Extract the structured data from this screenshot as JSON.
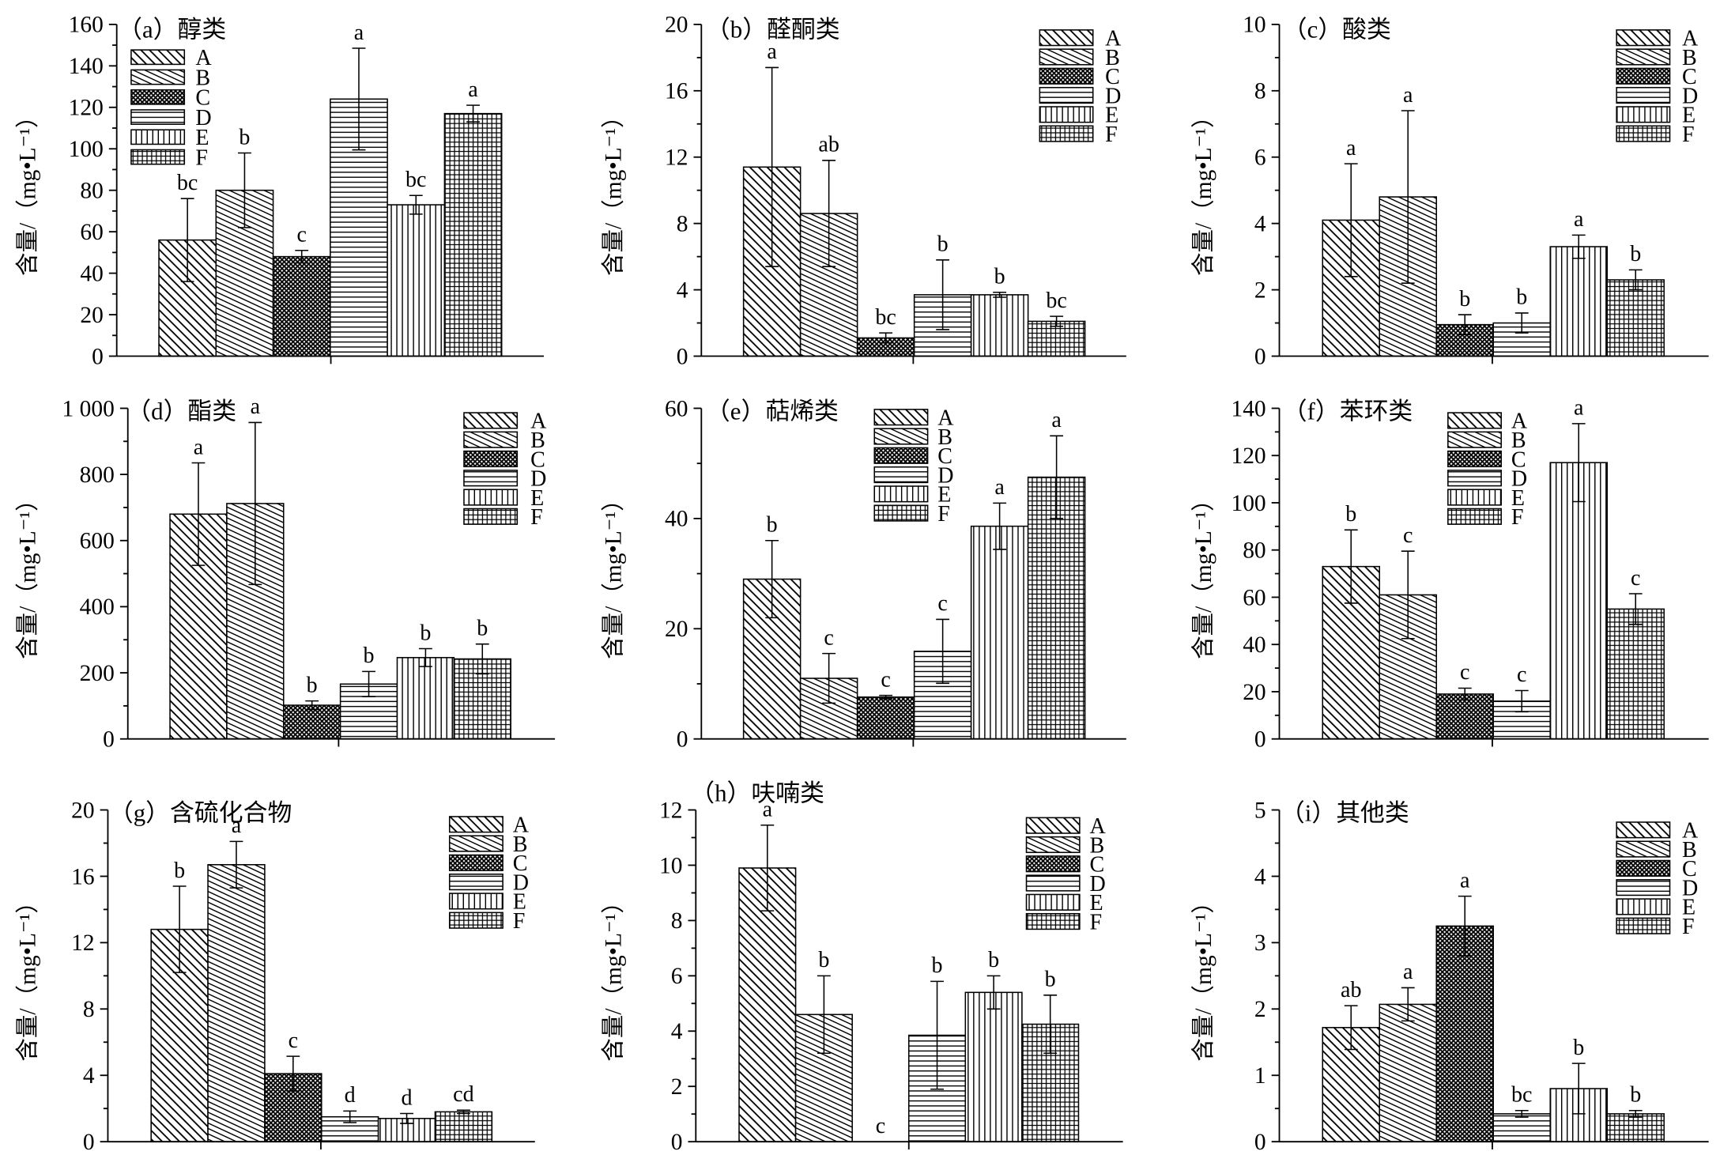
{
  "colors": {
    "ink": "#000000",
    "background": "#ffffff"
  },
  "bar_patterns": {
    "A": "diagonal-hatch",
    "B": "shallow-diagonal-hatch",
    "C": "dense-crosshatch",
    "D": "horizontal-lines",
    "E": "vertical-lines",
    "F": "grid"
  },
  "chart_data": [
    {
      "type": "bar",
      "title": "（a）醇类",
      "ylabel": "含量/（mg•L⁻¹）",
      "ylim": [
        0,
        160
      ],
      "yticks": [
        0,
        20,
        40,
        60,
        80,
        100,
        120,
        140,
        160
      ],
      "ytick_labels": [
        "0",
        "20",
        "40",
        "60",
        "80",
        "100",
        "120",
        "140",
        "160"
      ],
      "categories": [
        "A",
        "B",
        "C",
        "D",
        "E",
        "F"
      ],
      "values": [
        56,
        80,
        48,
        124,
        73,
        117
      ],
      "errors": [
        20,
        18,
        3,
        24.5,
        4.5,
        4
      ],
      "significance": [
        "bc",
        "b",
        "c",
        "a",
        "bc",
        "a"
      ],
      "legend_position": "top-left",
      "grid": false
    },
    {
      "type": "bar",
      "title": "（b）醛酮类",
      "ylabel": "含量/（mg•L⁻¹）",
      "ylim": [
        0,
        20
      ],
      "yticks": [
        0,
        4,
        8,
        12,
        16,
        20
      ],
      "ytick_labels": [
        "0",
        "4",
        "8",
        "12",
        "16",
        "20"
      ],
      "categories": [
        "A",
        "B",
        "C",
        "D",
        "E",
        "F"
      ],
      "values": [
        11.4,
        8.6,
        1.1,
        3.7,
        3.7,
        2.1
      ],
      "errors": [
        6.0,
        3.2,
        0.3,
        2.1,
        0.15,
        0.3
      ],
      "significance": [
        "a",
        "ab",
        "bc",
        "b",
        "b",
        "bc"
      ],
      "legend_position": "top-right",
      "grid": false
    },
    {
      "type": "bar",
      "title": "（c）酸类",
      "ylabel": "含量/（mg•L⁻¹）",
      "ylim": [
        0,
        10
      ],
      "yticks": [
        0,
        2,
        4,
        6,
        8,
        10
      ],
      "ytick_labels": [
        "0",
        "2",
        "4",
        "6",
        "8",
        "10"
      ],
      "categories": [
        "A",
        "B",
        "C",
        "D",
        "E",
        "F"
      ],
      "values": [
        4.1,
        4.8,
        0.95,
        1.0,
        3.3,
        2.3
      ],
      "errors": [
        1.7,
        2.6,
        0.3,
        0.3,
        0.35,
        0.3
      ],
      "significance": [
        "a",
        "a",
        "b",
        "b",
        "a",
        "b"
      ],
      "legend_position": "top-right",
      "grid": false
    },
    {
      "type": "bar",
      "title": "（d）酯类",
      "ylabel": "含量/（mg•L⁻¹）",
      "ylim": [
        0,
        1000
      ],
      "yticks": [
        0,
        200,
        400,
        600,
        800,
        1000
      ],
      "ytick_labels": [
        "0",
        "200",
        "400",
        "600",
        "800",
        "1 000"
      ],
      "categories": [
        "A",
        "B",
        "C",
        "D",
        "E",
        "F"
      ],
      "values": [
        680,
        712,
        102,
        166,
        246,
        242
      ],
      "errors": [
        155,
        245,
        13,
        38,
        27,
        45
      ],
      "significance": [
        "a",
        "a",
        "b",
        "b",
        "b",
        "b"
      ],
      "legend_position": "top-right",
      "grid": false
    },
    {
      "type": "bar",
      "title": "（e）萜烯类",
      "ylabel": "含量/（mg•L⁻¹）",
      "ylim": [
        0,
        60
      ],
      "yticks": [
        0,
        20,
        40,
        60
      ],
      "ytick_labels": [
        "0",
        "20",
        "40",
        "60"
      ],
      "categories": [
        "A",
        "B",
        "C",
        "D",
        "E",
        "F"
      ],
      "values": [
        29,
        11,
        7.6,
        15.9,
        38.6,
        47.5
      ],
      "errors": [
        7,
        4.5,
        0.3,
        5.8,
        4.2,
        7.5
      ],
      "significance": [
        "b",
        "c",
        "c",
        "c",
        "a",
        "a"
      ],
      "legend_position": "top-center",
      "grid": false
    },
    {
      "type": "bar",
      "title": "（f）苯环类",
      "ylabel": "含量/（mg•L⁻¹）",
      "ylim": [
        0,
        140
      ],
      "yticks": [
        0,
        20,
        40,
        60,
        80,
        100,
        120,
        140
      ],
      "ytick_labels": [
        "0",
        "20",
        "40",
        "60",
        "80",
        "100",
        "120",
        "140"
      ],
      "categories": [
        "A",
        "B",
        "C",
        "D",
        "E",
        "F"
      ],
      "values": [
        73,
        61,
        19,
        16,
        117,
        55
      ],
      "errors": [
        15.5,
        18.5,
        2.5,
        4.5,
        16.5,
        6.5
      ],
      "significance": [
        "b",
        "c",
        "c",
        "c",
        "a",
        "c"
      ],
      "legend_position": "top-center",
      "grid": false
    },
    {
      "type": "bar",
      "title": "（g）含硫化合物",
      "ylabel": "含量/（mg•L⁻¹）",
      "ylim": [
        0,
        20
      ],
      "yticks": [
        0,
        4,
        8,
        12,
        16,
        20
      ],
      "ytick_labels": [
        "0",
        "4",
        "8",
        "12",
        "16",
        "20"
      ],
      "categories": [
        "A",
        "B",
        "C",
        "D",
        "E",
        "F"
      ],
      "values": [
        12.8,
        16.7,
        4.1,
        1.5,
        1.4,
        1.8
      ],
      "errors": [
        2.6,
        1.4,
        1.05,
        0.35,
        0.3,
        0.1
      ],
      "significance": [
        "b",
        "a",
        "c",
        "d",
        "d",
        "cd"
      ],
      "legend_position": "top-right",
      "grid": false
    },
    {
      "type": "bar",
      "title": "（h）呋喃类",
      "ylabel": "含量/（mg•L⁻¹）",
      "ylim": [
        0,
        12
      ],
      "yticks": [
        0,
        2,
        4,
        6,
        8,
        10,
        12
      ],
      "ytick_labels": [
        "0",
        "2",
        "4",
        "6",
        "8",
        "10",
        "12"
      ],
      "categories": [
        "A",
        "B",
        "C",
        "D",
        "E",
        "F"
      ],
      "values": [
        9.9,
        4.6,
        0,
        3.85,
        5.4,
        4.25
      ],
      "errors": [
        1.55,
        1.4,
        0,
        1.95,
        0.6,
        1.05
      ],
      "significance": [
        "a",
        "b",
        "c",
        "b",
        "b",
        "b"
      ],
      "legend_position": "top-right",
      "grid": false
    },
    {
      "type": "bar",
      "title": "（i）其他类",
      "ylabel": "含量/（mg•L⁻¹）",
      "ylim": [
        0,
        5
      ],
      "yticks": [
        0,
        1,
        2,
        3,
        4,
        5
      ],
      "ytick_labels": [
        "0",
        "1",
        "2",
        "3",
        "4",
        "5"
      ],
      "categories": [
        "A",
        "B",
        "C",
        "D",
        "E",
        "F"
      ],
      "values": [
        1.72,
        2.07,
        3.25,
        0.42,
        0.8,
        0.42
      ],
      "errors": [
        0.33,
        0.25,
        0.45,
        0.05,
        0.38,
        0.05
      ],
      "significance": [
        "ab",
        "a",
        "a",
        "bc",
        "b",
        "b"
      ],
      "legend_position": "top-right",
      "grid": false
    }
  ]
}
